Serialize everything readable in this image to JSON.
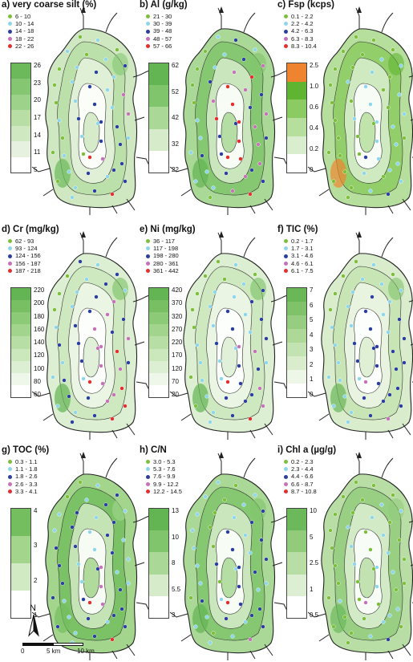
{
  "figure": {
    "north_label": "N",
    "scale": {
      "zero": "0",
      "mid": "5 km",
      "end": "10 km"
    },
    "panels": [
      {
        "key": "a",
        "title": "a) very coarse silt (%)",
        "legend": [
          {
            "label": "6 - 10",
            "color": "#7dbf3b"
          },
          {
            "label": "10 - 14",
            "color": "#8fd6ea"
          },
          {
            "label": "14 - 18",
            "color": "#2b3f9c"
          },
          {
            "label": "18 - 22",
            "color": "#c672b8"
          },
          {
            "label": "22 - 26",
            "color": "#e23030"
          }
        ],
        "colorbar": [
          "5",
          "11",
          "14",
          "17",
          "20",
          "23",
          "26"
        ],
        "ramp": [
          "#ffffff",
          "#e6f2df",
          "#cfe8c2",
          "#b8dea6",
          "#9dd28a",
          "#84c671",
          "#6bb95b"
        ]
      },
      {
        "key": "b",
        "title": "b) Al (g/kg)",
        "legend": [
          {
            "label": "21 - 30",
            "color": "#7dbf3b"
          },
          {
            "label": "30 - 39",
            "color": "#8fd6ea"
          },
          {
            "label": "39 - 48",
            "color": "#2b3f9c"
          },
          {
            "label": "48 - 57",
            "color": "#c672b8"
          },
          {
            "label": "57 - 66",
            "color": "#e23030"
          }
        ],
        "colorbar": [
          "22",
          "32",
          "42",
          "52",
          "62"
        ],
        "ramp": [
          "#ffffff",
          "#d5ebc9",
          "#a9d897",
          "#80c56b",
          "#63b452"
        ]
      },
      {
        "key": "c",
        "title": "c) Fsp (kcps)",
        "legend": [
          {
            "label": "0.1 - 2.2",
            "color": "#7dbf3b"
          },
          {
            "label": "2.2 - 4.2",
            "color": "#8fd6ea"
          },
          {
            "label": "4.2 - 6.3",
            "color": "#2b3f9c"
          },
          {
            "label": "6.3 - 8.3",
            "color": "#c672b8"
          },
          {
            "label": "8.3 - 10.4",
            "color": "#e23030"
          }
        ],
        "colorbar": [
          "0",
          "0.2",
          "0.4",
          "0.6",
          "1.0",
          "2.5"
        ],
        "ramp": [
          "#ffffff",
          "#d9eecf",
          "#b6df9d",
          "#8ccb62",
          "#5fb532",
          "#ef8430"
        ]
      },
      {
        "key": "d",
        "title": "d) Cr (mg/kg)",
        "legend": [
          {
            "label": "62 - 93",
            "color": "#7dbf3b"
          },
          {
            "label": "93 - 124",
            "color": "#8fd6ea"
          },
          {
            "label": "124 - 156",
            "color": "#2b3f9c"
          },
          {
            "label": "156 - 187",
            "color": "#c672b8"
          },
          {
            "label": "187 - 218",
            "color": "#e23030"
          }
        ],
        "colorbar": [
          "60",
          "80",
          "100",
          "120",
          "140",
          "160",
          "180",
          "200",
          "220"
        ],
        "ramp": [
          "#ffffff",
          "#eef7e9",
          "#dcefd2",
          "#cbe7bc",
          "#b7dea4",
          "#a2d48d",
          "#8dca77",
          "#78bf63",
          "#63b452"
        ]
      },
      {
        "key": "e",
        "title": "e) Ni (mg/kg)",
        "legend": [
          {
            "label": "36 - 117",
            "color": "#7dbf3b"
          },
          {
            "label": "117 - 198",
            "color": "#8fd6ea"
          },
          {
            "label": "198 - 280",
            "color": "#2b3f9c"
          },
          {
            "label": "280 - 361",
            "color": "#c672b8"
          },
          {
            "label": "361 - 442",
            "color": "#e23030"
          }
        ],
        "colorbar": [
          "20",
          "70",
          "120",
          "170",
          "220",
          "270",
          "320",
          "370",
          "420"
        ],
        "ramp": [
          "#ffffff",
          "#eef7e9",
          "#dcefd2",
          "#cbe7bc",
          "#b7dea4",
          "#a2d48d",
          "#8dca77",
          "#78bf63",
          "#63b452"
        ]
      },
      {
        "key": "f",
        "title": "f) TIC (%)",
        "legend": [
          {
            "label": "0.2 - 1.7",
            "color": "#7dbf3b"
          },
          {
            "label": "1.7 - 3.1",
            "color": "#8fd6ea"
          },
          {
            "label": "3.1 - 4.6",
            "color": "#2b3f9c"
          },
          {
            "label": "4.6 - 6.1",
            "color": "#c672b8"
          },
          {
            "label": "6.1 - 7.5",
            "color": "#e23030"
          }
        ],
        "colorbar": [
          "0",
          "1",
          "2",
          "3",
          "4",
          "5",
          "6",
          "7"
        ],
        "ramp": [
          "#ffffff",
          "#edf6e7",
          "#d9edcd",
          "#c4e3b2",
          "#aed898",
          "#97cd80",
          "#80c26a",
          "#6ab758"
        ]
      },
      {
        "key": "g",
        "title": "g) TOC (%)",
        "legend": [
          {
            "label": "0.3 - 1.1",
            "color": "#7dbf3b"
          },
          {
            "label": "1.1 - 1.8",
            "color": "#8fd6ea"
          },
          {
            "label": "1.8 - 2.6",
            "color": "#2b3f9c"
          },
          {
            "label": "2.6 - 3.3",
            "color": "#c672b8"
          },
          {
            "label": "3.3 - 4.1",
            "color": "#e23030"
          }
        ],
        "colorbar": [
          "1",
          "2",
          "3",
          "4"
        ],
        "ramp": [
          "#ffffff",
          "#d1eac4",
          "#a3d58d",
          "#74be5f"
        ]
      },
      {
        "key": "h",
        "title": "h) C/N",
        "legend": [
          {
            "label": "3.0 - 5.3",
            "color": "#7dbf3b"
          },
          {
            "label": "5.3 - 7.6",
            "color": "#8fd6ea"
          },
          {
            "label": "7.6 - 9.9",
            "color": "#2b3f9c"
          },
          {
            "label": "9.9 - 12.2",
            "color": "#c672b8"
          },
          {
            "label": "12.2 - 14.5",
            "color": "#e23030"
          }
        ],
        "colorbar": [
          "3",
          "5.5",
          "8",
          "10",
          "13"
        ],
        "ramp": [
          "#ffffff",
          "#d5ebc9",
          "#a9d897",
          "#80c56b",
          "#63b452"
        ]
      },
      {
        "key": "i",
        "title": "i) Chl a (µg/g)",
        "legend": [
          {
            "label": "0.2 - 2.3",
            "color": "#7dbf3b"
          },
          {
            "label": "2.3 - 4.4",
            "color": "#8fd6ea"
          },
          {
            "label": "4.4 - 6.6",
            "color": "#2b3f9c"
          },
          {
            "label": "6.6 - 8.7",
            "color": "#c672b8"
          },
          {
            "label": "8.7 - 10.8",
            "color": "#e23030"
          }
        ],
        "colorbar": [
          "0.5",
          "1",
          "2.5",
          "5",
          "10"
        ],
        "ramp": [
          "#ffffff",
          "#dcefd2",
          "#b8dea5",
          "#92cc7b",
          "#6bb95b"
        ]
      }
    ]
  }
}
